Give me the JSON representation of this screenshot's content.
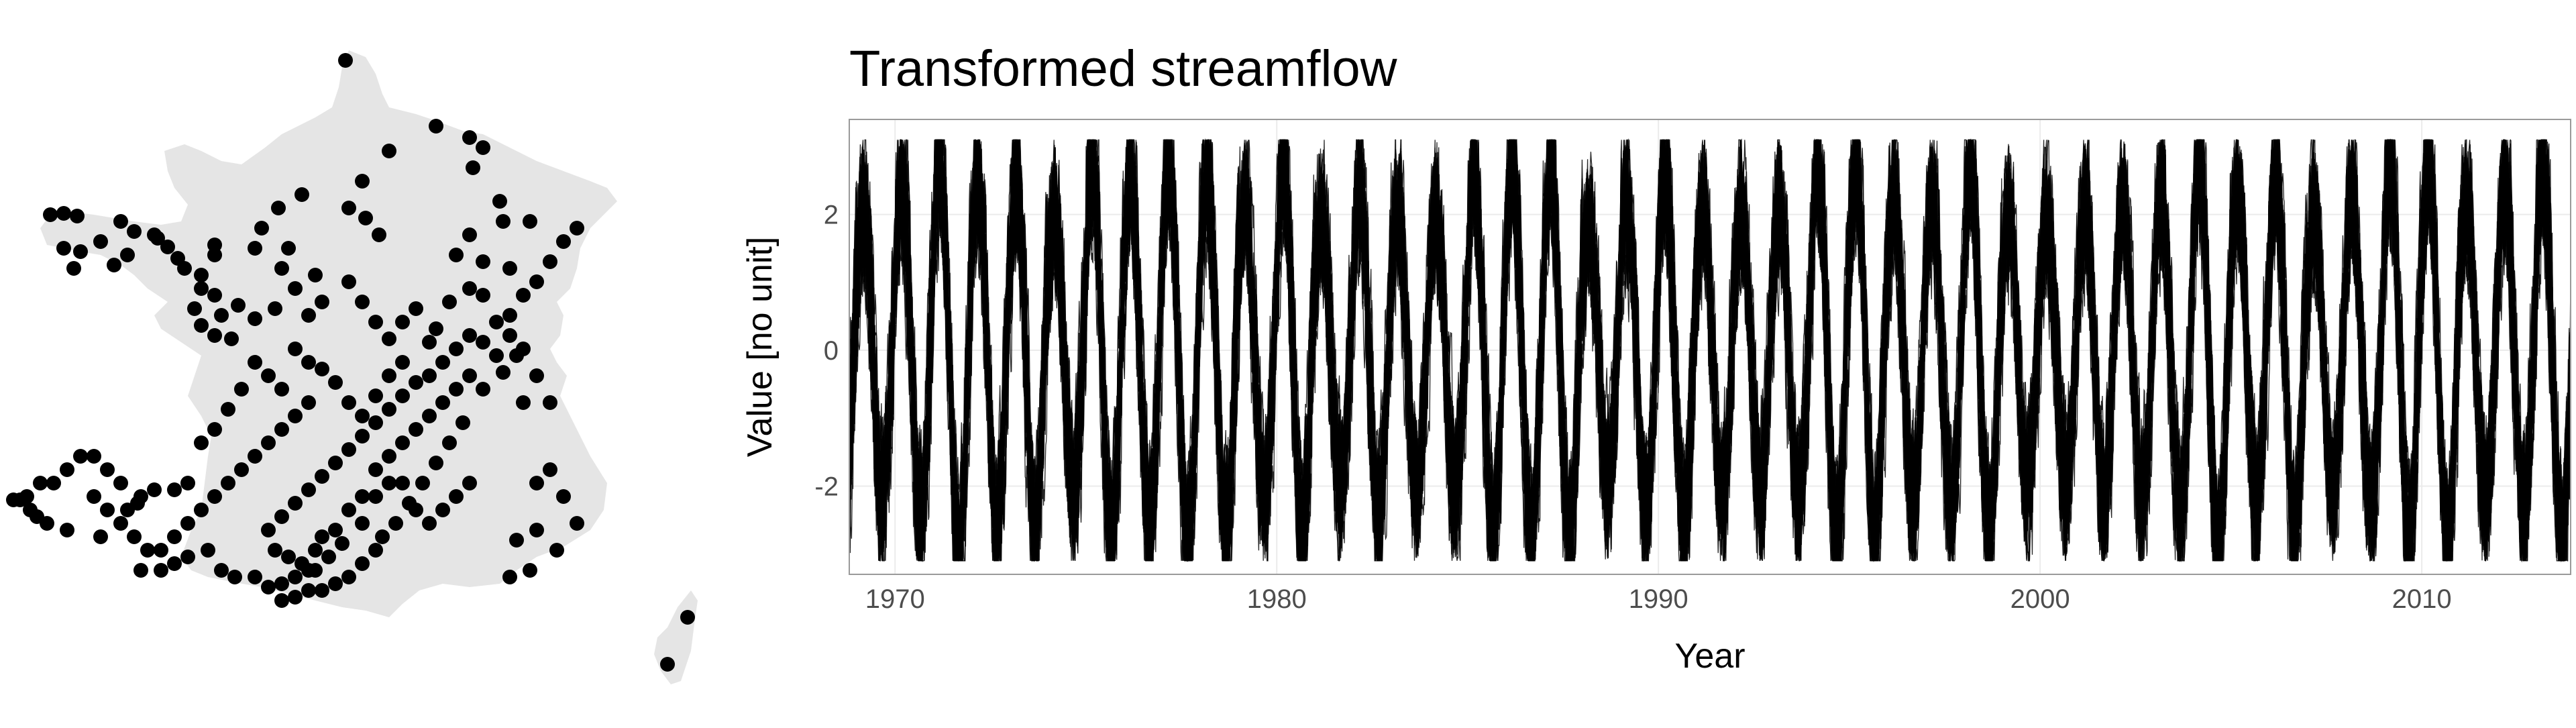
{
  "map": {
    "land_color": "#e5e5e5",
    "station_color": "#000000"
  },
  "chart_data": {
    "type": "line",
    "title": "Transformed streamflow",
    "xlabel": "Year",
    "ylabel": "Value [no unit]",
    "xlim": [
      1968.8,
      2013.9
    ],
    "ylim": [
      -3.3,
      3.4
    ],
    "x_ticks": [
      1970,
      1980,
      1990,
      2000,
      2010
    ],
    "x_tick_labels": [
      "1970",
      "1980",
      "1990",
      "2000",
      "2010"
    ],
    "y_ticks": [
      -2,
      0,
      2
    ],
    "y_tick_labels": [
      "-2",
      "0",
      "2"
    ],
    "grid": true,
    "legend": "none",
    "line_color": "#000000",
    "series_description_values": {
      "n_series": 30,
      "x_start": 1968.8,
      "x_end": 2013.9,
      "value_range": [
        -3.1,
        3.1
      ]
    }
  }
}
